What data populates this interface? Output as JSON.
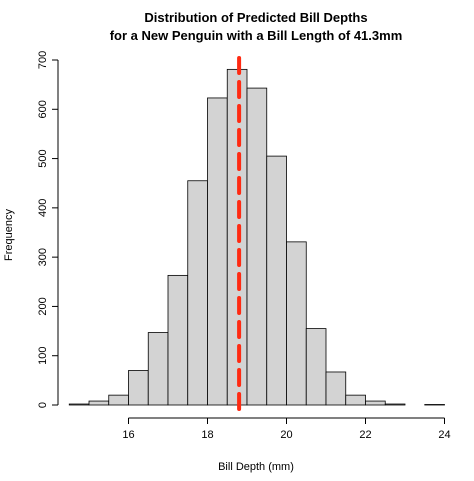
{
  "chart_data": {
    "type": "bar",
    "title": [
      "Distribution of Predicted Bill Depths",
      "for a New Penguin with a Bill Length of 41.3mm"
    ],
    "xlabel": "Bill Depth (mm)",
    "ylabel": "Frequency",
    "xlim": [
      14.5,
      24
    ],
    "ylim": [
      0,
      700
    ],
    "xticks": [
      16,
      18,
      20,
      22,
      24
    ],
    "yticks": [
      0,
      100,
      200,
      300,
      400,
      500,
      600,
      700
    ],
    "bin_width": 0.5,
    "bins": [
      {
        "start": 14.5,
        "end": 15.0,
        "count": 2
      },
      {
        "start": 15.0,
        "end": 15.5,
        "count": 8
      },
      {
        "start": 15.5,
        "end": 16.0,
        "count": 20
      },
      {
        "start": 16.0,
        "end": 16.5,
        "count": 70
      },
      {
        "start": 16.5,
        "end": 17.0,
        "count": 147
      },
      {
        "start": 17.0,
        "end": 17.5,
        "count": 263
      },
      {
        "start": 17.5,
        "end": 18.0,
        "count": 455
      },
      {
        "start": 18.0,
        "end": 18.5,
        "count": 623
      },
      {
        "start": 18.5,
        "end": 19.0,
        "count": 681
      },
      {
        "start": 19.0,
        "end": 19.5,
        "count": 643
      },
      {
        "start": 19.5,
        "end": 20.0,
        "count": 505
      },
      {
        "start": 20.0,
        "end": 20.5,
        "count": 331
      },
      {
        "start": 20.5,
        "end": 21.0,
        "count": 155
      },
      {
        "start": 21.0,
        "end": 21.5,
        "count": 67
      },
      {
        "start": 21.5,
        "end": 22.0,
        "count": 20
      },
      {
        "start": 22.0,
        "end": 22.5,
        "count": 8
      },
      {
        "start": 22.5,
        "end": 23.0,
        "count": 2
      },
      {
        "start": 23.0,
        "end": 23.5,
        "count": 0
      },
      {
        "start": 23.5,
        "end": 24.0,
        "count": 1
      }
    ],
    "reference_line": {
      "x": 18.8,
      "color": "#ff2a12",
      "style": "dashed"
    },
    "bar_fill": "#d3d3d3",
    "bar_stroke": "#000000",
    "grid": false,
    "legend": "none"
  }
}
